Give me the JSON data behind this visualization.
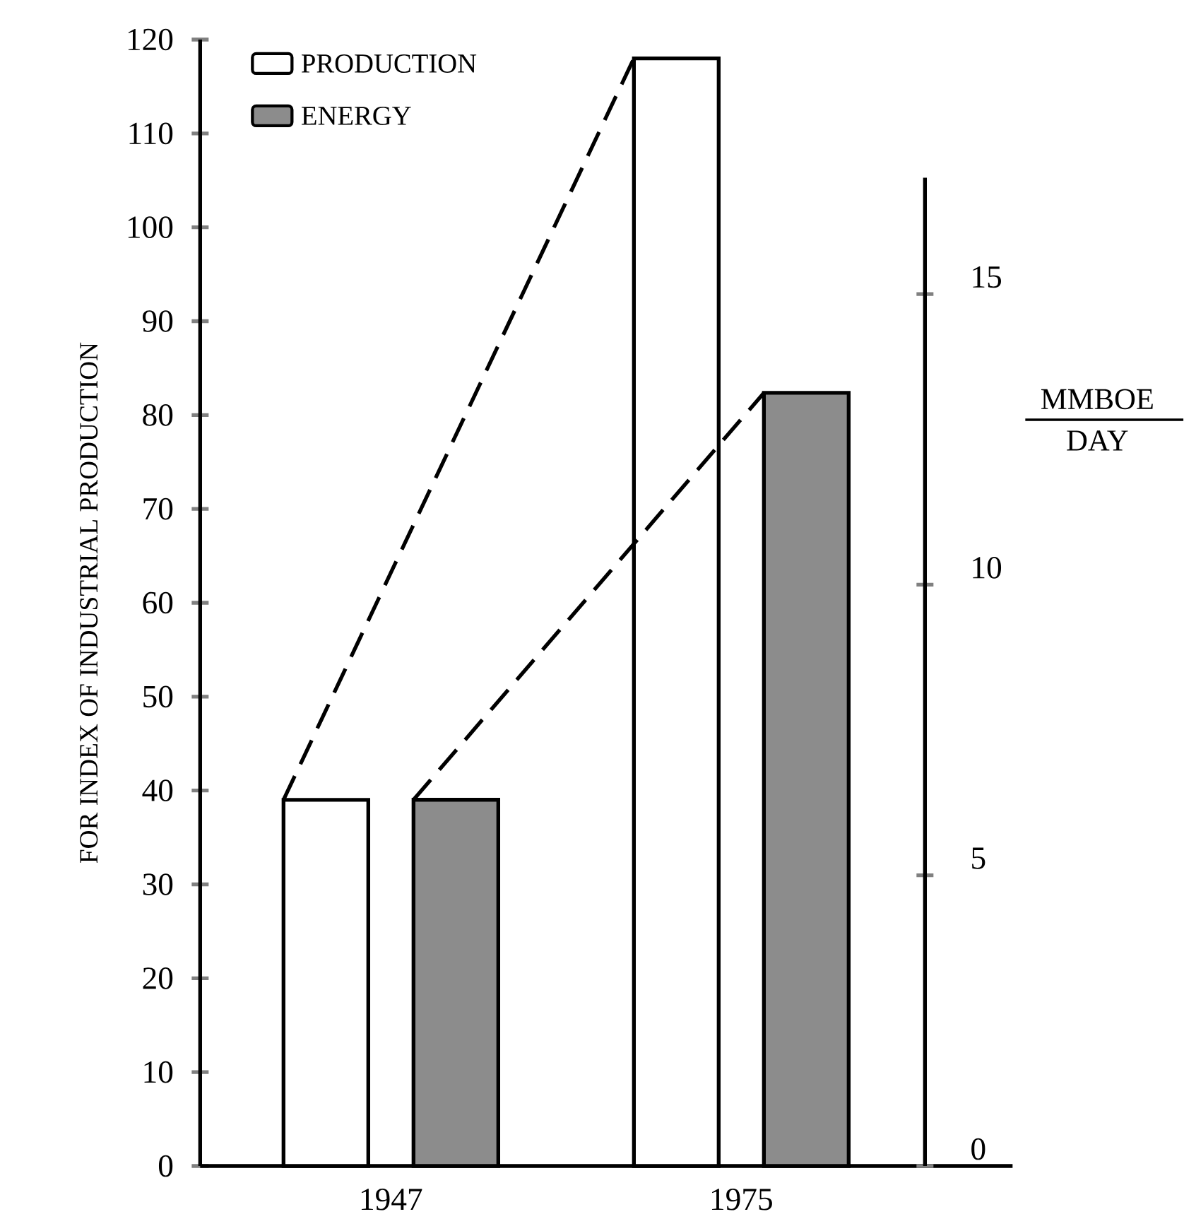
{
  "chart_data": {
    "type": "bar",
    "ylabel": "FOR INDEX OF INDUSTRIAL PRODUCTION",
    "y2label": "MMBOE DAY",
    "categories": [
      "1947",
      "1975"
    ],
    "series": [
      {
        "name": "PRODUCTION",
        "color": "#ffffff",
        "values": [
          39,
          118
        ]
      },
      {
        "name": "ENERGY",
        "color": "#8c8c8c",
        "axis": "y2",
        "values": [
          6.3,
          13.3
        ]
      }
    ],
    "ylim": [
      0,
      120
    ],
    "yticks": [
      0,
      10,
      20,
      30,
      40,
      50,
      60,
      70,
      80,
      90,
      100,
      110,
      120
    ],
    "y2lim": [
      0,
      17
    ],
    "y2ticks": [
      0,
      5,
      10,
      15
    ],
    "legend": "top left",
    "grid": false
  }
}
